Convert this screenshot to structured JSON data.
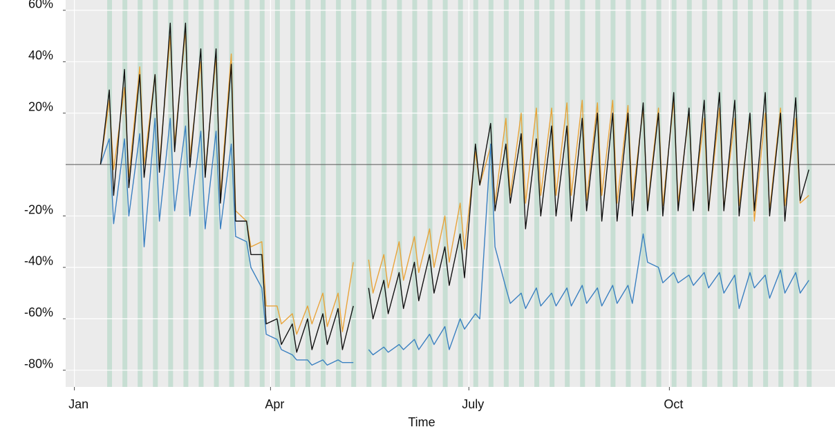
{
  "chart_data": {
    "type": "line",
    "xlabel": "Time",
    "x": [
      13,
      17,
      19,
      24,
      26,
      31,
      33,
      38,
      40,
      45,
      47,
      52,
      54,
      59,
      61,
      66,
      68,
      73,
      75,
      80,
      82,
      87,
      89,
      94,
      96,
      101,
      103,
      108,
      110,
      115,
      117,
      122,
      124,
      129,
      131,
      136,
      138,
      143,
      145,
      150,
      152,
      157,
      159,
      164,
      166,
      171,
      173,
      178,
      180,
      185,
      187,
      192,
      194,
      199,
      201,
      206,
      208,
      213,
      215,
      220,
      222,
      227,
      229,
      234,
      236,
      241,
      243,
      248,
      250,
      255,
      257,
      262,
      264,
      269,
      271,
      276,
      278,
      283,
      285,
      290,
      292,
      297,
      299,
      304,
      306,
      311,
      313,
      318,
      320,
      325,
      327,
      332,
      334,
      338
    ],
    "series": [
      {
        "color": "#e8a33a",
        "values": [
          0,
          25,
          -2,
          30,
          -5,
          38,
          0,
          35,
          0,
          50,
          8,
          52,
          3,
          40,
          -3,
          42,
          -12,
          43,
          -18,
          -22,
          -32,
          -30,
          -55,
          -55,
          -62,
          -58,
          -66,
          -55,
          -62,
          -50,
          -63,
          -50,
          -65,
          -38,
          null,
          -37,
          -50,
          -35,
          -48,
          -30,
          -45,
          -28,
          -42,
          -25,
          -40,
          -20,
          -38,
          -15,
          -33,
          5,
          -8,
          7,
          -15,
          18,
          -12,
          20,
          -15,
          22,
          -12,
          22,
          -12,
          24,
          -12,
          25,
          -14,
          24,
          -12,
          25,
          -15,
          23,
          -14,
          22,
          -16,
          22,
          -16,
          25,
          -15,
          20,
          -16,
          18,
          -18,
          22,
          -17,
          18,
          -16,
          18,
          -22,
          20,
          -18,
          22,
          -16,
          18,
          -15,
          -12
        ]
      },
      {
        "color": "#3a80c0",
        "values": [
          0,
          10,
          -23,
          10,
          -20,
          12,
          -32,
          18,
          -22,
          18,
          -18,
          15,
          -20,
          13,
          -25,
          13,
          -25,
          8,
          -28,
          -30,
          -40,
          -48,
          -66,
          -68,
          -72,
          -74,
          -76,
          -76,
          -78,
          -76,
          -78,
          -76,
          -77,
          -77,
          null,
          -72,
          -74,
          -71,
          -73,
          -70,
          -72,
          -68,
          -72,
          -66,
          -70,
          -63,
          -72,
          -60,
          -64,
          -58,
          -60,
          8,
          -32,
          -48,
          -54,
          -50,
          -56,
          -48,
          -55,
          -50,
          -55,
          -48,
          -55,
          -47,
          -54,
          -48,
          -55,
          -47,
          -54,
          -47,
          -54,
          -27,
          -38,
          -40,
          -46,
          -42,
          -46,
          -43,
          -47,
          -42,
          -48,
          -42,
          -50,
          -43,
          -56,
          -42,
          -48,
          -43,
          -52,
          -41,
          -50,
          -42,
          -50,
          -45
        ]
      },
      {
        "color": "#111111",
        "values": [
          0,
          29,
          -12,
          37,
          -9,
          35,
          -5,
          35,
          -3,
          55,
          5,
          55,
          -1,
          45,
          -5,
          45,
          -15,
          39,
          -22,
          -22,
          -35,
          -35,
          -62,
          -60,
          -70,
          -62,
          -73,
          -60,
          -72,
          -58,
          -70,
          -56,
          -72,
          -55,
          null,
          -48,
          -60,
          -45,
          -58,
          -42,
          -56,
          -38,
          -53,
          -35,
          -50,
          -32,
          -47,
          -27,
          -44,
          8,
          -8,
          16,
          -18,
          8,
          -15,
          12,
          -25,
          10,
          -20,
          15,
          -20,
          15,
          -22,
          18,
          -18,
          20,
          -22,
          20,
          -22,
          20,
          -20,
          24,
          -18,
          20,
          -20,
          28,
          -18,
          22,
          -18,
          25,
          -18,
          28,
          -18,
          25,
          -20,
          20,
          -18,
          28,
          -20,
          20,
          -22,
          26,
          -14,
          -2
        ]
      }
    ],
    "xlim": [
      -3,
      350
    ],
    "xticks": [
      {
        "value": 1,
        "label": "Jan"
      },
      {
        "value": 91,
        "label": "Apr"
      },
      {
        "value": 182,
        "label": "July"
      },
      {
        "value": 274,
        "label": "Oct"
      }
    ],
    "ylim": [
      -86.5,
      64
    ],
    "yticks": [
      {
        "value": -80,
        "label": "-80%"
      },
      {
        "value": -60,
        "label": "-60%"
      },
      {
        "value": -40,
        "label": "-40%"
      },
      {
        "value": -20,
        "label": "-20%"
      },
      {
        "value": 20,
        "label": "20%"
      },
      {
        "value": 40,
        "label": "40%"
      },
      {
        "value": 60,
        "label": "60%"
      }
    ],
    "hline": 0,
    "grid": true
  }
}
